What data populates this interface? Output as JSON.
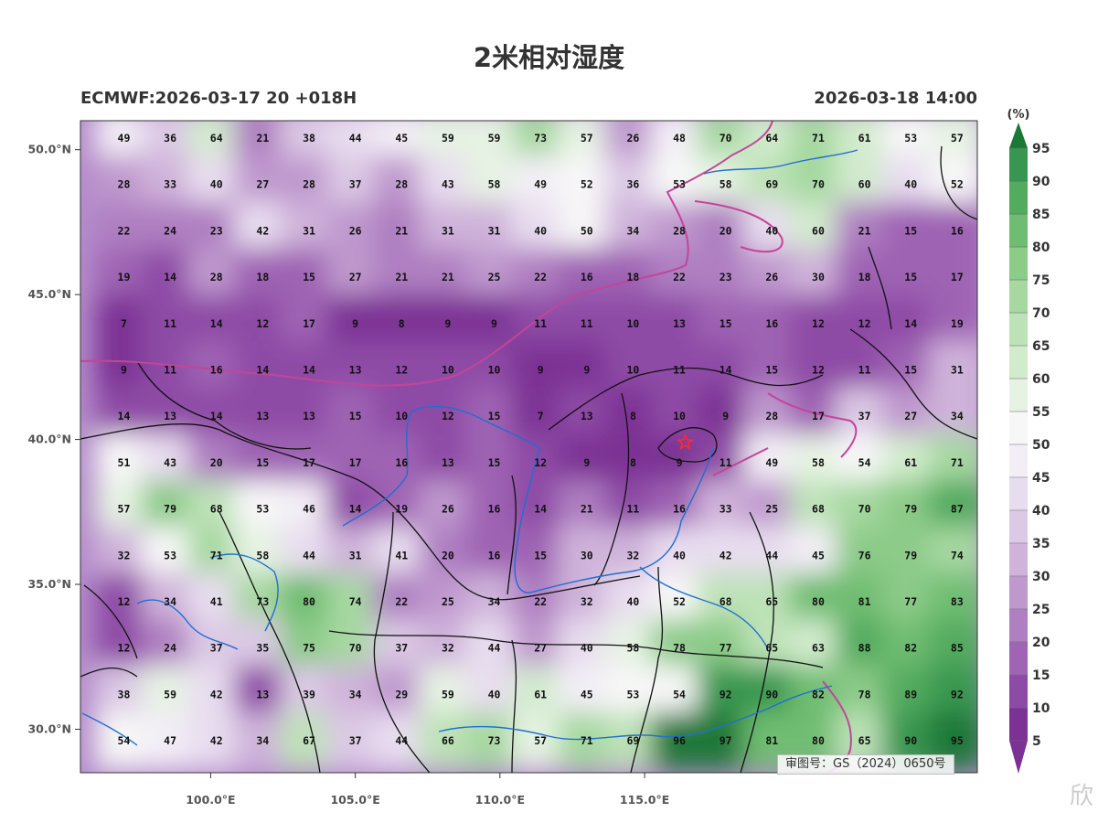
{
  "title": "2米相对湿度",
  "model_run": "ECMWF:2026-03-17 20 +018H",
  "valid_time": "2026-03-18 14:00",
  "approval": "审图号：GS（2024）0650号",
  "watermark": "欣",
  "map": {
    "lon_range": [
      95.5,
      126.5
    ],
    "lat_range": [
      28.5,
      51.0
    ],
    "lat_ticks": [
      "50.0°N",
      "45.0°N",
      "40.0°N",
      "35.0°N",
      "30.0°N"
    ],
    "lat_tick_values": [
      50,
      45,
      40,
      35,
      30
    ],
    "lon_ticks": [
      "100.0°E",
      "105.0°E",
      "110.0°E",
      "115.0°E"
    ],
    "lon_tick_values": [
      100,
      105,
      110,
      115
    ],
    "grid_lons": [
      97,
      98.6,
      100.2,
      101.8,
      103.4,
      105,
      106.6,
      108.2,
      109.8,
      111.4,
      113,
      114.6,
      116.2,
      117.8,
      119.4,
      121,
      122.6,
      124.2,
      125.8
    ],
    "grid_lats": [
      50.4,
      48.8,
      47.2,
      45.6,
      44,
      42.4,
      40.8,
      39.2,
      37.6,
      36,
      34.4,
      32.8,
      31.2,
      29.6
    ],
    "values": [
      [
        "49",
        "36",
        "64",
        "21",
        "38",
        "44",
        "45",
        "59",
        "59",
        "73",
        "57",
        "26",
        "48",
        "70",
        "64",
        "71",
        "61",
        "53",
        "57"
      ],
      [
        "28",
        "33",
        "40",
        "27",
        "28",
        "37",
        "28",
        "43",
        "58",
        "49",
        "52",
        "36",
        "53",
        "58",
        "69",
        "70",
        "60",
        "40",
        "52"
      ],
      [
        "22",
        "24",
        "23",
        "42",
        "31",
        "26",
        "21",
        "31",
        "31",
        "40",
        "50",
        "34",
        "28",
        "20",
        "40",
        "60",
        "21",
        "15",
        "16"
      ],
      [
        "19",
        "14",
        "28",
        "18",
        "15",
        "27",
        "21",
        "21",
        "25",
        "22",
        "16",
        "18",
        "22",
        "23",
        "26",
        "30",
        "18",
        "15",
        "17"
      ],
      [
        "7",
        "11",
        "14",
        "12",
        "17",
        "9",
        "8",
        "9",
        "9",
        "11",
        "11",
        "10",
        "13",
        "15",
        "16",
        "12",
        "12",
        "14",
        "19"
      ],
      [
        "9",
        "11",
        "16",
        "14",
        "14",
        "13",
        "12",
        "10",
        "10",
        "9",
        "9",
        "10",
        "11",
        "14",
        "15",
        "12",
        "11",
        "15",
        "31"
      ],
      [
        "14",
        "13",
        "14",
        "13",
        "13",
        "15",
        "10",
        "12",
        "15",
        "7",
        "13",
        "8",
        "10",
        "9",
        "28",
        "17",
        "37",
        "27",
        "34"
      ],
      [
        "51",
        "43",
        "20",
        "15",
        "17",
        "17",
        "16",
        "13",
        "15",
        "12",
        "9",
        "8",
        "9",
        "11",
        "49",
        "58",
        "54",
        "61",
        "71"
      ],
      [
        "57",
        "79",
        "68",
        "53",
        "46",
        "14",
        "19",
        "26",
        "16",
        "14",
        "21",
        "11",
        "16",
        "33",
        "25",
        "68",
        "70",
        "79",
        "87"
      ],
      [
        "32",
        "53",
        "71",
        "58",
        "44",
        "31",
        "41",
        "20",
        "16",
        "15",
        "30",
        "32",
        "40",
        "42",
        "44",
        "45",
        "76",
        "79",
        "74"
      ],
      [
        "12",
        "34",
        "41",
        "73",
        "80",
        "74",
        "22",
        "25",
        "34",
        "22",
        "32",
        "40",
        "52",
        "68",
        "65",
        "80",
        "81",
        "77",
        "83"
      ],
      [
        "12",
        "24",
        "37",
        "35",
        "75",
        "70",
        "37",
        "32",
        "44",
        "27",
        "40",
        "58",
        "78",
        "77",
        "65",
        "63",
        "88",
        "82",
        "85"
      ],
      [
        "38",
        "59",
        "42",
        "13",
        "39",
        "34",
        "29",
        "59",
        "40",
        "61",
        "45",
        "53",
        "54",
        "92",
        "90",
        "82",
        "78",
        "89",
        "92"
      ],
      [
        "54",
        "47",
        "42",
        "34",
        "67",
        "37",
        "44",
        "66",
        "73",
        "57",
        "71",
        "69",
        "96",
        "97",
        "81",
        "80",
        "65",
        "90",
        "95"
      ]
    ],
    "capital_marker": {
      "lon": 116.4,
      "lat": 39.9,
      "color": "#ff2a2a"
    }
  },
  "colorbar": {
    "unit": "(%)",
    "levels": [
      "5",
      "10",
      "15",
      "20",
      "25",
      "30",
      "35",
      "40",
      "45",
      "50",
      "55",
      "60",
      "65",
      "70",
      "75",
      "80",
      "85",
      "90",
      "95"
    ],
    "colors": [
      "#7b3294",
      "#8e4ba6",
      "#9f64b4",
      "#af7fc1",
      "#bf99ce",
      "#cfb3da",
      "#dcc9e5",
      "#e8ddef",
      "#f3eef6",
      "#f7f7f7",
      "#e6f3e3",
      "#d2ebcd",
      "#bde2b7",
      "#a6d8a0",
      "#8ccb88",
      "#6fbd72",
      "#52ab5e",
      "#379750",
      "#1b7837"
    ]
  }
}
